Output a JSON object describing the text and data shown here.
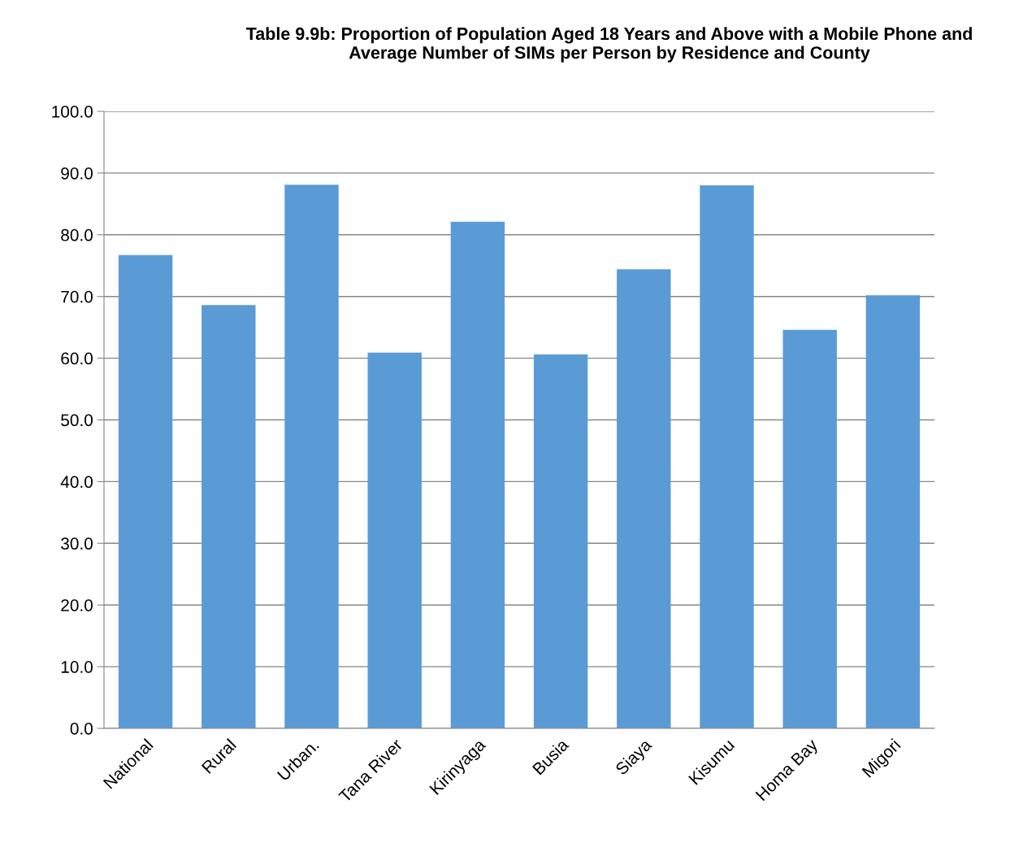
{
  "chart_data": {
    "type": "bar",
    "title": "Table 9.9b: Proportion of Population Aged 18 Years and Above with a Mobile Phone and\nAverage Number of SIMs per Person by Residence and County",
    "categories": [
      "National",
      "Rural",
      "Urban.",
      "Tana River",
      "Kirinyaga",
      "Busia",
      "Siaya",
      "Kisumu",
      "Homa Bay",
      "Migori"
    ],
    "values": [
      76.7,
      68.6,
      88.1,
      60.9,
      82.1,
      60.6,
      74.4,
      88.0,
      64.6,
      70.2
    ],
    "color": "#5b9bd5",
    "ylim": [
      0,
      100
    ],
    "yticks": [
      {
        "value": 0,
        "label": "0.0"
      },
      {
        "value": 10,
        "label": "10.0"
      },
      {
        "value": 20,
        "label": "20.0"
      },
      {
        "value": 30,
        "label": "30.0"
      },
      {
        "value": 40,
        "label": "40.0"
      },
      {
        "value": 50,
        "label": "50.0"
      },
      {
        "value": 60,
        "label": "60.0"
      },
      {
        "value": 70,
        "label": "70.0"
      },
      {
        "value": 80,
        "label": "80.0"
      },
      {
        "value": 90,
        "label": "90.0"
      },
      {
        "value": 100,
        "label": "100.0"
      }
    ],
    "grid": "y"
  }
}
